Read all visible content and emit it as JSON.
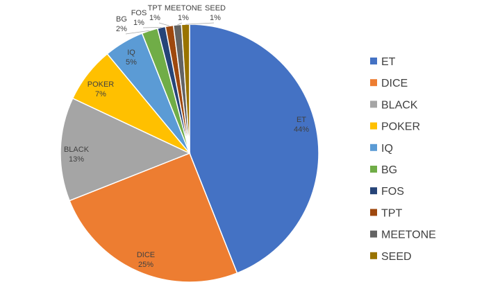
{
  "chart_data": {
    "type": "pie",
    "categories": [
      "ET",
      "DICE",
      "BLACK",
      "POKER",
      "IQ",
      "BG",
      "FOS",
      "TPT",
      "MEETONE",
      "SEED"
    ],
    "values": [
      44,
      25,
      13,
      7,
      5,
      2,
      1,
      1,
      1,
      1
    ],
    "value_labels": [
      "44%",
      "25%",
      "13%",
      "7%",
      "5%",
      "2%",
      "1%",
      "1%",
      "1%",
      "1%"
    ],
    "colors": [
      "#4472C4",
      "#ED7D31",
      "#A5A5A5",
      "#FFC000",
      "#5B9BD5",
      "#70AD47",
      "#264478",
      "#9E480E",
      "#636363",
      "#997300"
    ],
    "legend_position": "right",
    "title": ""
  }
}
